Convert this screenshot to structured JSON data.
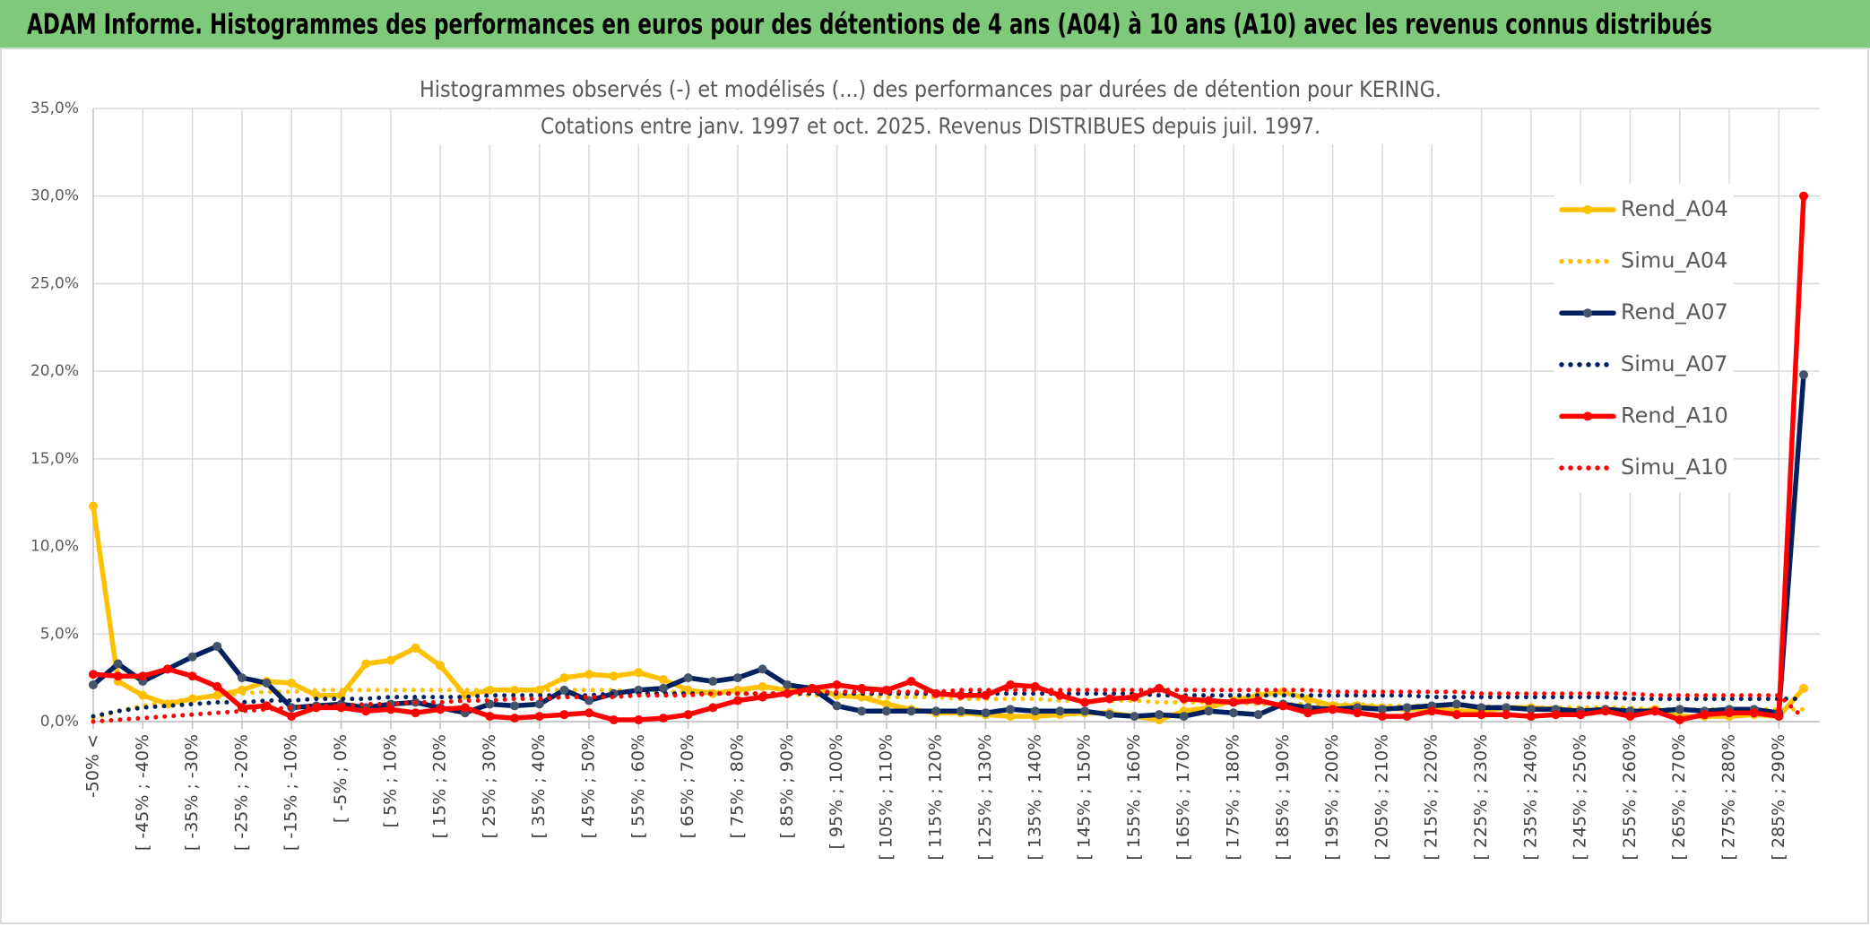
{
  "header": {
    "title": "ADAM Informe. Histogrammes des performances en euros pour des détentions de 4 ans (A04) à 10 ans (A10) avec les revenus connus distribués"
  },
  "chart_data": {
    "type": "line",
    "title": [
      "Histogrammes observés (-) et modélisés (...) des performances par durées de détention pour KERING.",
      "Cotations entre janv. 1997 et oct. 2025. Revenus DISTRIBUES depuis juil. 1997."
    ],
    "categories": [
      "-50% <",
      null,
      "[ -45% ; -40%",
      null,
      "[ -35% ; -30%",
      null,
      "[ -25% ; -20%",
      null,
      "[ -15% ; -10%",
      null,
      "[ -5% ; 0%",
      null,
      "[ 5% ; 10%",
      null,
      "[ 15% ; 20%",
      null,
      "[ 25% ; 30%",
      null,
      "[ 35% ; 40%",
      null,
      "[ 45% ; 50%",
      null,
      "[ 55% ; 60%",
      null,
      "[ 65% ; 70%",
      null,
      "[ 75% ; 80%",
      null,
      "[ 85% ; 90%",
      null,
      "[ 95% ; 100%",
      null,
      "[ 105% ; 110%",
      null,
      "[ 115% ; 120%",
      null,
      "[ 125% ; 130%",
      null,
      "[ 135% ; 140%",
      null,
      "[ 145% ; 150%",
      null,
      "[ 155% ; 160%",
      null,
      "[ 165% ; 170%",
      null,
      "[ 175% ; 180%",
      null,
      "[ 185% ; 190%",
      null,
      "[ 195% ; 200%",
      null,
      "[ 205% ; 210%",
      null,
      "[ 215% ; 220%",
      null,
      "[ 225% ; 230%",
      null,
      "[ 235% ; 240%",
      null,
      "[ 245% ; 250%",
      null,
      "[ 255% ; 260%",
      null,
      "[ 265% ; 270%",
      null,
      "[ 275% ; 280%",
      null,
      "[ 285% ; 290%",
      null
    ],
    "series": [
      {
        "name": "Rend_A04",
        "color": "#ffc000",
        "line_style": "solid",
        "values": [
          12.3,
          2.3,
          1.5,
          1.0,
          1.3,
          1.5,
          1.8,
          2.3,
          2.2,
          1.5,
          1.5,
          3.3,
          3.5,
          4.2,
          3.2,
          1.5,
          1.8,
          1.8,
          1.8,
          2.5,
          2.7,
          2.6,
          2.8,
          2.4,
          1.8,
          1.6,
          1.8,
          2.0,
          1.8,
          1.9,
          1.5,
          1.4,
          1.0,
          0.7,
          0.5,
          0.5,
          0.4,
          0.3,
          0.3,
          0.4,
          0.5,
          0.5,
          0.3,
          0.1,
          0.6,
          0.8,
          1.2,
          1.5,
          1.7,
          1.3,
          0.9,
          0.9,
          0.8,
          0.7,
          0.8,
          0.6,
          0.6,
          0.8,
          0.8,
          0.7,
          0.6,
          0.7,
          0.5,
          0.7,
          0.3,
          0.3,
          0.3,
          0.4,
          0.3,
          1.9
        ]
      },
      {
        "name": "Simu_A04",
        "color": "#ffc000",
        "line_style": "dotted",
        "values": [
          0.2,
          0.6,
          0.9,
          1.1,
          1.3,
          1.5,
          1.6,
          1.7,
          1.7,
          1.8,
          1.8,
          1.8,
          1.8,
          1.8,
          1.8,
          1.8,
          1.8,
          1.8,
          1.8,
          1.8,
          1.8,
          1.8,
          1.7,
          1.7,
          1.7,
          1.7,
          1.6,
          1.6,
          1.6,
          1.5,
          1.5,
          1.5,
          1.4,
          1.4,
          1.4,
          1.3,
          1.3,
          1.3,
          1.3,
          1.2,
          1.2,
          1.2,
          1.2,
          1.1,
          1.1,
          1.1,
          1.1,
          1.0,
          1.0,
          1.0,
          1.0,
          1.0,
          0.9,
          0.9,
          0.9,
          0.9,
          0.9,
          0.8,
          0.8,
          0.8,
          0.8,
          0.8,
          0.8,
          0.7,
          0.7,
          0.7,
          0.7,
          0.7,
          0.7,
          0.7
        ]
      },
      {
        "name": "Rend_A07",
        "color": "#002060",
        "marker_color": "#44546a",
        "line_style": "solid",
        "values": [
          2.1,
          3.3,
          2.3,
          3.0,
          3.7,
          4.3,
          2.5,
          2.2,
          0.8,
          0.9,
          1.0,
          0.8,
          1.0,
          1.1,
          0.8,
          0.5,
          1.0,
          0.9,
          1.0,
          1.8,
          1.2,
          1.6,
          1.8,
          1.9,
          2.5,
          2.3,
          2.5,
          3.0,
          2.1,
          1.9,
          0.9,
          0.6,
          0.6,
          0.6,
          0.6,
          0.6,
          0.5,
          0.7,
          0.6,
          0.6,
          0.6,
          0.4,
          0.3,
          0.4,
          0.3,
          0.6,
          0.5,
          0.4,
          1.0,
          0.8,
          0.7,
          0.8,
          0.7,
          0.8,
          0.9,
          1.0,
          0.8,
          0.8,
          0.7,
          0.7,
          0.6,
          0.7,
          0.6,
          0.6,
          0.7,
          0.6,
          0.7,
          0.7,
          0.5,
          19.8
        ]
      },
      {
        "name": "Simu_A07",
        "color": "#002060",
        "line_style": "dotted",
        "values": [
          0.3,
          0.6,
          0.8,
          0.9,
          1.0,
          1.1,
          1.1,
          1.2,
          1.2,
          1.3,
          1.3,
          1.3,
          1.4,
          1.4,
          1.4,
          1.4,
          1.5,
          1.5,
          1.5,
          1.5,
          1.5,
          1.6,
          1.6,
          1.6,
          1.6,
          1.6,
          1.6,
          1.6,
          1.6,
          1.6,
          1.6,
          1.6,
          1.6,
          1.6,
          1.6,
          1.6,
          1.6,
          1.6,
          1.6,
          1.6,
          1.6,
          1.6,
          1.6,
          1.5,
          1.5,
          1.5,
          1.5,
          1.5,
          1.5,
          1.5,
          1.5,
          1.5,
          1.5,
          1.5,
          1.4,
          1.4,
          1.4,
          1.4,
          1.4,
          1.4,
          1.4,
          1.4,
          1.3,
          1.3,
          1.3,
          1.3,
          1.3,
          1.3,
          1.3,
          1.3
        ]
      },
      {
        "name": "Rend_A10",
        "color": "#ff0000",
        "line_style": "solid",
        "values": [
          2.7,
          2.6,
          2.6,
          3.0,
          2.6,
          2.0,
          0.8,
          0.9,
          0.3,
          0.8,
          0.8,
          0.6,
          0.7,
          0.5,
          0.7,
          0.8,
          0.3,
          0.2,
          0.3,
          0.4,
          0.5,
          0.1,
          0.1,
          0.2,
          0.4,
          0.8,
          1.2,
          1.4,
          1.6,
          1.9,
          2.1,
          1.9,
          1.8,
          2.3,
          1.6,
          1.5,
          1.5,
          2.1,
          2.0,
          1.5,
          1.1,
          1.3,
          1.4,
          1.9,
          1.3,
          1.2,
          1.1,
          1.2,
          0.9,
          0.5,
          0.7,
          0.5,
          0.3,
          0.3,
          0.6,
          0.4,
          0.4,
          0.4,
          0.3,
          0.4,
          0.4,
          0.6,
          0.3,
          0.6,
          0.1,
          0.4,
          0.5,
          0.5,
          0.3,
          30.0
        ]
      },
      {
        "name": "Simu_A10",
        "color": "#ff0000",
        "line_style": "dotted",
        "values": [
          0.0,
          0.1,
          0.2,
          0.3,
          0.4,
          0.5,
          0.6,
          0.7,
          0.8,
          0.9,
          0.9,
          1.0,
          1.0,
          1.1,
          1.1,
          1.2,
          1.2,
          1.3,
          1.3,
          1.4,
          1.4,
          1.4,
          1.5,
          1.5,
          1.5,
          1.6,
          1.6,
          1.6,
          1.6,
          1.7,
          1.7,
          1.7,
          1.7,
          1.7,
          1.7,
          1.8,
          1.8,
          1.8,
          1.8,
          1.8,
          1.8,
          1.8,
          1.8,
          1.8,
          1.8,
          1.8,
          1.8,
          1.8,
          1.8,
          1.8,
          1.7,
          1.7,
          1.7,
          1.7,
          1.7,
          1.7,
          1.6,
          1.6,
          1.6,
          1.6,
          1.6,
          1.6,
          1.6,
          1.5,
          1.5,
          1.5,
          1.5,
          1.5,
          1.5,
          0.2
        ]
      }
    ],
    "ylim": [
      0,
      35
    ],
    "yticks": [
      {
        "value": 0,
        "label": "0,0%"
      },
      {
        "value": 5,
        "label": "5,0%"
      },
      {
        "value": 10,
        "label": "10,0%"
      },
      {
        "value": 15,
        "label": "15,0%"
      },
      {
        "value": 20,
        "label": "20,0%"
      },
      {
        "value": 25,
        "label": "25,0%"
      },
      {
        "value": 30,
        "label": "30,0%"
      },
      {
        "value": 35,
        "label": "35,0%"
      }
    ],
    "grid": true,
    "legend": "right"
  }
}
